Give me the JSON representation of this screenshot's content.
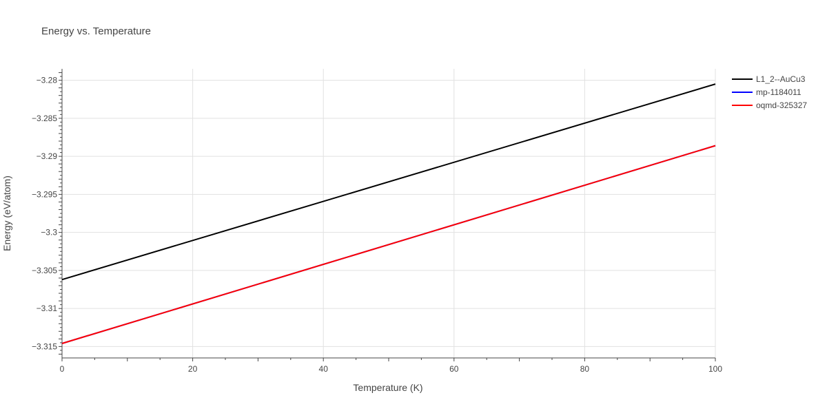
{
  "chart_data": {
    "type": "line",
    "title": "Energy vs. Temperature",
    "xlabel": "Temperature (K)",
    "ylabel": "Energy (eV/atom)",
    "xlim": [
      0,
      100
    ],
    "ylim": [
      -3.3165,
      -3.2785
    ],
    "xticks": [
      0,
      20,
      40,
      60,
      80,
      100
    ],
    "yticks": [
      -3.315,
      -3.31,
      -3.305,
      -3.3,
      -3.295,
      -3.29,
      -3.285,
      -3.28
    ],
    "ytick_labels": [
      "−3.315",
      "−3.31",
      "−3.305",
      "−3.3",
      "−3.295",
      "−3.29",
      "−3.285",
      "−3.28"
    ],
    "grid": true,
    "legend_position": "right",
    "series": [
      {
        "name": "L1_2--AuCu3",
        "color": "#000000",
        "x": [
          0,
          100
        ],
        "y": [
          -3.3062,
          -3.2805
        ]
      },
      {
        "name": "mp-1184011",
        "color": "#0000ff",
        "x": [
          0,
          100
        ],
        "y": [
          -3.3146,
          -3.2886
        ]
      },
      {
        "name": "oqmd-325327",
        "color": "#ff0000",
        "x": [
          0,
          100
        ],
        "y": [
          -3.3146,
          -3.2886
        ]
      }
    ]
  }
}
